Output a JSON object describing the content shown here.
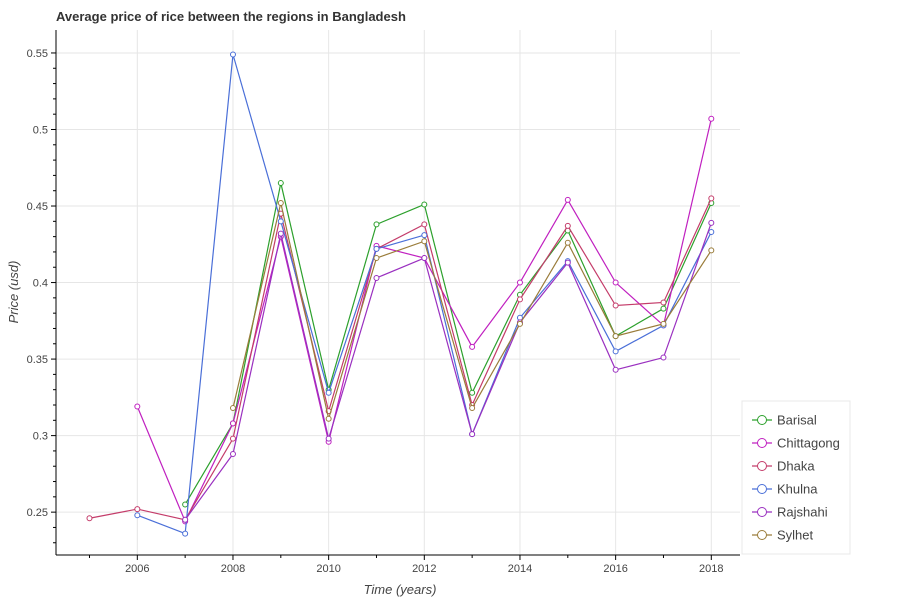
{
  "chart_data": {
    "type": "line",
    "title": "Average price of rice between the regions in Bangladesh",
    "xlabel": "Time (years)",
    "ylabel": "Price (usd)",
    "xlim": [
      2004.3,
      2018.6
    ],
    "ylim": [
      0.222,
      0.565
    ],
    "x_ticks": [
      2006,
      2008,
      2010,
      2012,
      2014,
      2016,
      2018
    ],
    "y_ticks": [
      0.25,
      0.3,
      0.35,
      0.4,
      0.45,
      0.5,
      0.55
    ],
    "y_tick_labels": [
      "0.25",
      "0.3",
      "0.35",
      "0.4",
      "0.45",
      "0.5",
      "0.55"
    ],
    "grid": true,
    "legend_position": "bottom-right, outside plot",
    "series": [
      {
        "name": "Barisal",
        "color": "#2ca02c",
        "points": [
          [
            2007,
            0.255
          ],
          [
            2008,
            0.308
          ],
          [
            2009,
            0.465
          ],
          [
            2010,
            0.33
          ],
          [
            2011,
            0.438
          ],
          [
            2012,
            0.451
          ],
          [
            2013,
            0.328
          ],
          [
            2014,
            0.392
          ],
          [
            2015,
            0.434
          ],
          [
            2016,
            0.365
          ],
          [
            2017,
            0.383
          ],
          [
            2018,
            0.452
          ]
        ]
      },
      {
        "name": "Chittagong",
        "color": "#c020c0",
        "points": [
          [
            2006,
            0.319
          ],
          [
            2007,
            0.244
          ],
          [
            2008,
            0.308
          ],
          [
            2009,
            0.43
          ],
          [
            2010,
            0.296
          ],
          [
            2011,
            0.424
          ],
          [
            2012,
            0.416
          ],
          [
            2013,
            0.358
          ],
          [
            2014,
            0.4
          ],
          [
            2015,
            0.454
          ],
          [
            2016,
            0.4
          ],
          [
            2017,
            0.372
          ],
          [
            2018,
            0.507
          ]
        ]
      },
      {
        "name": "Dhaka",
        "color": "#c43c6a",
        "points": [
          [
            2005,
            0.246
          ],
          [
            2006,
            0.252
          ],
          [
            2007,
            0.245
          ],
          [
            2008,
            0.298
          ],
          [
            2009,
            0.445
          ],
          [
            2010,
            0.316
          ],
          [
            2011,
            0.422
          ],
          [
            2012,
            0.438
          ],
          [
            2013,
            0.32
          ],
          [
            2014,
            0.389
          ],
          [
            2015,
            0.437
          ],
          [
            2016,
            0.385
          ],
          [
            2017,
            0.387
          ],
          [
            2018,
            0.455
          ]
        ]
      },
      {
        "name": "Khulna",
        "color": "#4a6fd8",
        "points": [
          [
            2006,
            0.248
          ],
          [
            2007,
            0.236
          ],
          [
            2008,
            0.549
          ],
          [
            2009,
            0.44
          ],
          [
            2010,
            0.328
          ],
          [
            2011,
            0.422
          ],
          [
            2012,
            0.431
          ],
          [
            2013,
            0.301
          ],
          [
            2014,
            0.377
          ],
          [
            2015,
            0.414
          ],
          [
            2016,
            0.355
          ],
          [
            2017,
            0.372
          ],
          [
            2018,
            0.433
          ]
        ]
      },
      {
        "name": "Rajshahi",
        "color": "#9a30c0",
        "points": [
          [
            2007,
            0.245
          ],
          [
            2008,
            0.288
          ],
          [
            2009,
            0.432
          ],
          [
            2010,
            0.298
          ],
          [
            2011,
            0.403
          ],
          [
            2012,
            0.416
          ],
          [
            2013,
            0.301
          ],
          [
            2014,
            0.374
          ],
          [
            2015,
            0.413
          ],
          [
            2016,
            0.343
          ],
          [
            2017,
            0.351
          ],
          [
            2018,
            0.439
          ]
        ]
      },
      {
        "name": "Sylhet",
        "color": "#9a7c3a",
        "points": [
          [
            2008,
            0.318
          ],
          [
            2009,
            0.452
          ],
          [
            2010,
            0.311
          ],
          [
            2011,
            0.416
          ],
          [
            2012,
            0.427
          ],
          [
            2013,
            0.318
          ],
          [
            2014,
            0.373
          ],
          [
            2015,
            0.426
          ],
          [
            2016,
            0.365
          ],
          [
            2017,
            0.373
          ],
          [
            2018,
            0.421
          ]
        ]
      }
    ]
  }
}
